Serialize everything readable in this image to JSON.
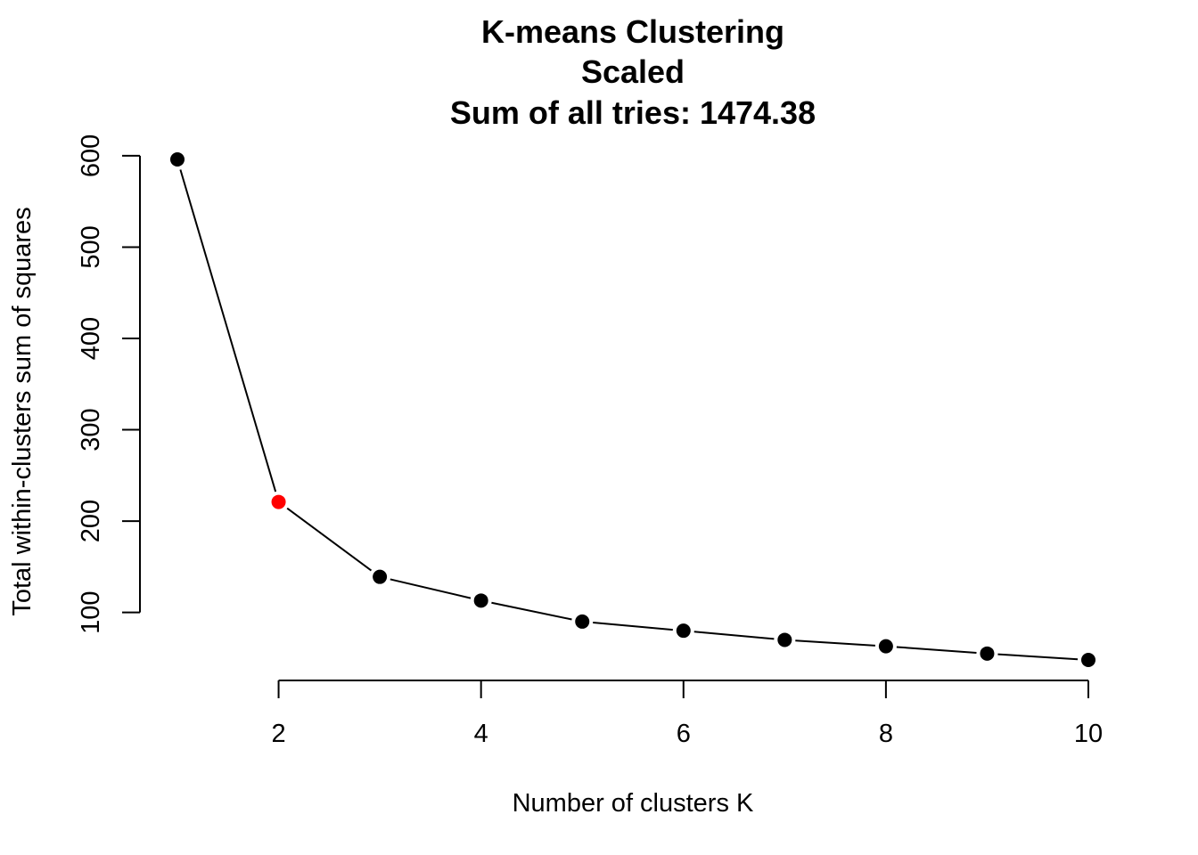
{
  "chart_data": {
    "type": "line",
    "title_lines": [
      "K-means Clustering",
      "Scaled",
      "Sum of all tries: 1474.38"
    ],
    "xlabel": "Number of clusters K",
    "ylabel": "Total within-clusters sum of squares",
    "x": [
      1,
      2,
      3,
      4,
      5,
      6,
      7,
      8,
      9,
      10
    ],
    "series": [
      {
        "values": [
          596,
          221,
          139,
          113,
          90,
          80,
          70,
          63,
          55,
          48
        ]
      }
    ],
    "highlight": {
      "x": 2,
      "color": "#ff0000"
    },
    "point_color": "#000000",
    "line_color": "#000000",
    "xlim": [
      1,
      10
    ],
    "ylim": [
      48,
      596
    ],
    "x_ticks": [
      2,
      4,
      6,
      8,
      10
    ],
    "y_ticks": [
      100,
      200,
      300,
      400,
      500,
      600
    ],
    "grid": false,
    "legend": "none"
  }
}
